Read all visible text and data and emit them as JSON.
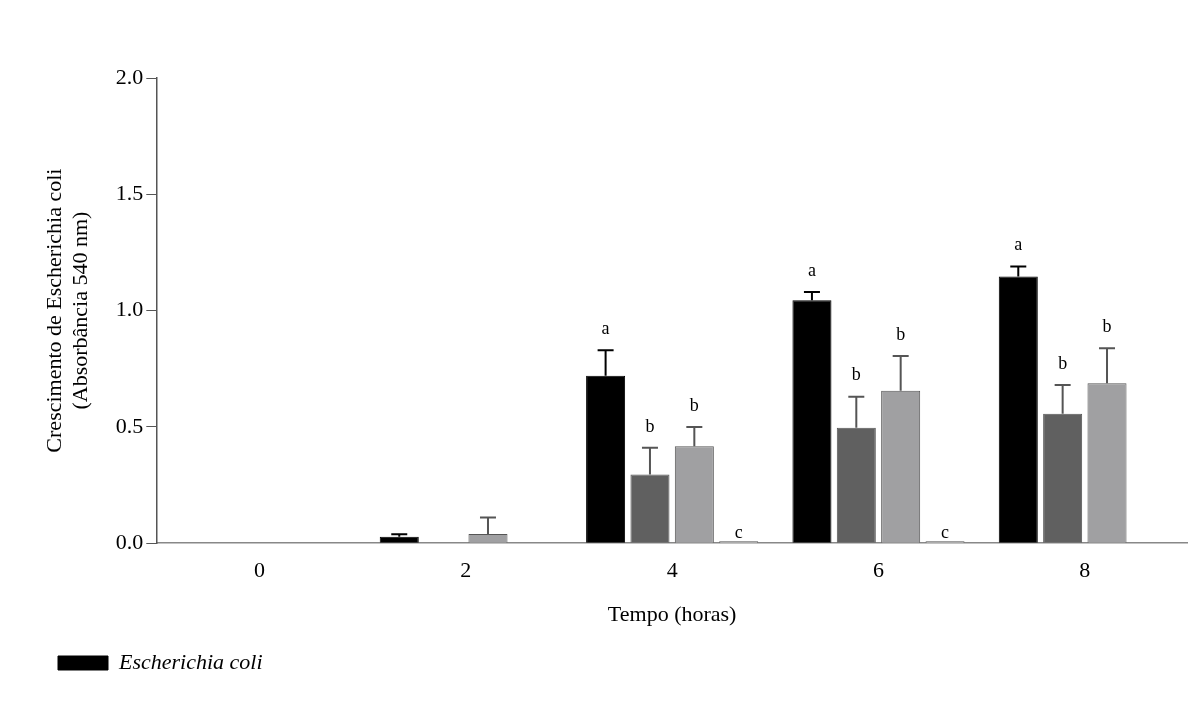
{
  "chart_data": {
    "type": "bar",
    "xlabel": "Tempo (horas)",
    "ylabel": "Crescimento de Escherichia coli\n(Absorbância 540 nm)",
    "categories": [
      "0",
      "2",
      "4",
      "6",
      "8"
    ],
    "series": [
      {
        "name": "Escherichia coli",
        "color": "#000000",
        "values": [
          null,
          0.028,
          0.72,
          1.045,
          1.147
        ],
        "errors": [
          null,
          0.01,
          0.11,
          0.035,
          0.043
        ],
        "value_labels": [
          null,
          null,
          "a",
          "a",
          "a"
        ]
      },
      {
        "color": "#606060",
        "values": [
          null,
          null,
          0.295,
          0.496,
          0.557
        ],
        "errors": [
          null,
          null,
          0.115,
          0.134,
          0.123
        ],
        "value_labels": [
          null,
          null,
          "b",
          "b",
          "b"
        ]
      },
      {
        "color": "#a0a0a2",
        "values": [
          null,
          0.04,
          0.417,
          0.655,
          0.688
        ],
        "errors": [
          null,
          0.07,
          0.083,
          0.15,
          0.15
        ],
        "value_labels": [
          null,
          null,
          "b",
          "b",
          "b"
        ]
      },
      {
        "color": "#c8c8c8",
        "values": [
          null,
          null,
          0,
          0,
          null
        ],
        "value_labels": [
          null,
          null,
          "c",
          "c",
          null
        ]
      }
    ],
    "ylim": [
      0,
      2
    ],
    "yticks": [
      {
        "value": 0,
        "label": "0.0"
      },
      {
        "value": 0.5,
        "label": "0.5"
      },
      {
        "value": 1,
        "label": "1.0"
      },
      {
        "value": 1.5,
        "label": "1.5"
      },
      {
        "value": 2,
        "label": "2.0"
      }
    ],
    "grid": false,
    "legend": "bottom left"
  }
}
